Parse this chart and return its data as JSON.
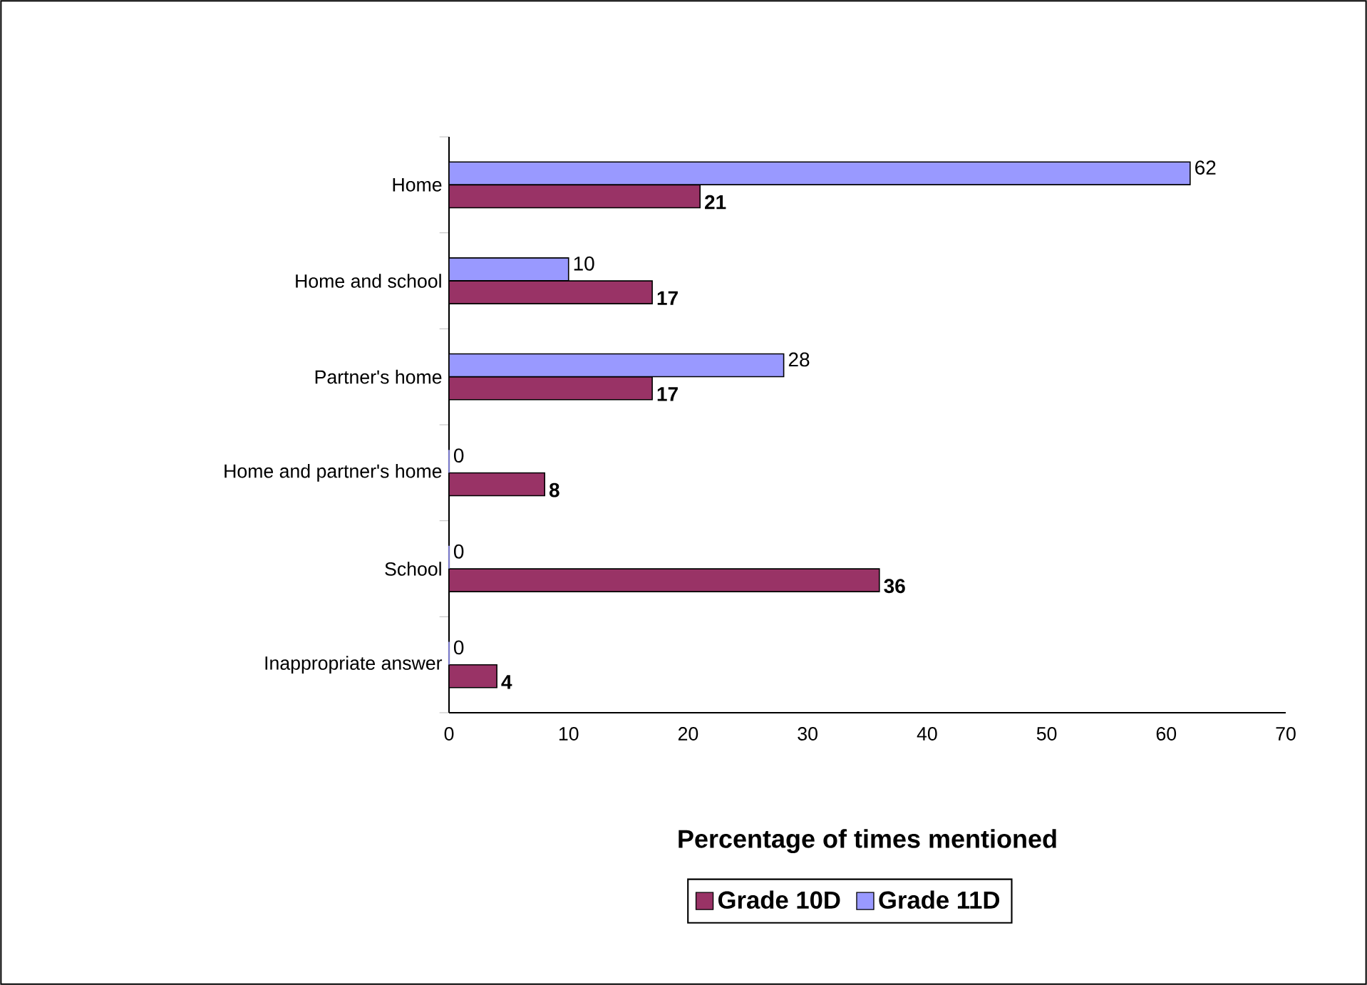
{
  "chart_data": {
    "type": "bar",
    "orientation": "horizontal",
    "xlabel": "Percentage of times mentioned",
    "categories": [
      "Home",
      "Home and school",
      "Partner's home",
      "Home and partner's home",
      "School",
      "Inappropriate answer"
    ],
    "series": [
      {
        "name": "Grade 10D",
        "color": "#993366",
        "values": [
          21,
          17,
          17,
          8,
          36,
          4
        ]
      },
      {
        "name": "Grade 11D",
        "color": "#9999ff",
        "values": [
          62,
          10,
          28,
          0,
          0,
          0
        ]
      }
    ],
    "xlim": [
      0,
      70
    ],
    "xticks": [
      0,
      10,
      20,
      30,
      40,
      50,
      60,
      70
    ],
    "data_labels": true,
    "legend": "bottom"
  }
}
